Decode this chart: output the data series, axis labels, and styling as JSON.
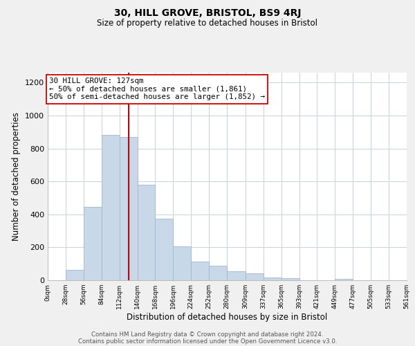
{
  "title": "30, HILL GROVE, BRISTOL, BS9 4RJ",
  "subtitle": "Size of property relative to detached houses in Bristol",
  "xlabel": "Distribution of detached houses by size in Bristol",
  "ylabel": "Number of detached properties",
  "bar_left_edges": [
    0,
    28,
    56,
    84,
    112,
    140,
    168,
    196,
    224,
    252,
    280,
    309,
    337,
    365,
    393,
    421,
    449,
    477,
    505,
    533
  ],
  "bar_widths": [
    28,
    28,
    28,
    28,
    28,
    28,
    28,
    28,
    28,
    28,
    29,
    28,
    28,
    28,
    28,
    28,
    28,
    28,
    28,
    28
  ],
  "bar_heights": [
    0,
    65,
    445,
    880,
    870,
    580,
    375,
    205,
    115,
    90,
    55,
    42,
    15,
    12,
    0,
    0,
    8,
    0,
    0,
    0
  ],
  "bar_color": "#c8d8e8",
  "bar_edge_color": "#a0b8cc",
  "property_line_x": 127,
  "property_line_color": "#cc0000",
  "annotation_text": "30 HILL GROVE: 127sqm\n← 50% of detached houses are smaller (1,861)\n50% of semi-detached houses are larger (1,852) →",
  "annotation_box_color": "#ffffff",
  "annotation_box_edge": "#cc0000",
  "xlim": [
    0,
    561
  ],
  "ylim": [
    0,
    1260
  ],
  "xtick_positions": [
    0,
    28,
    56,
    84,
    112,
    140,
    168,
    196,
    224,
    252,
    280,
    309,
    337,
    365,
    393,
    421,
    449,
    477,
    505,
    533,
    561
  ],
  "xtick_labels": [
    "0sqm",
    "28sqm",
    "56sqm",
    "84sqm",
    "112sqm",
    "140sqm",
    "168sqm",
    "196sqm",
    "224sqm",
    "252sqm",
    "280sqm",
    "309sqm",
    "337sqm",
    "365sqm",
    "393sqm",
    "421sqm",
    "449sqm",
    "477sqm",
    "505sqm",
    "533sqm",
    "561sqm"
  ],
  "ytick_positions": [
    0,
    200,
    400,
    600,
    800,
    1000,
    1200
  ],
  "ytick_labels": [
    "0",
    "200",
    "400",
    "600",
    "800",
    "1000",
    "1200"
  ],
  "footer_line1": "Contains HM Land Registry data © Crown copyright and database right 2024.",
  "footer_line2": "Contains public sector information licensed under the Open Government Licence v3.0.",
  "background_color": "#f0f0f0",
  "plot_background_color": "#ffffff",
  "grid_color": "#c8d0d8",
  "title_fontsize": 10,
  "subtitle_fontsize": 8.5,
  "xlabel_fontsize": 8.5,
  "ylabel_fontsize": 8.5,
  "annotation_fontsize": 7.8,
  "footer_fontsize": 6.2
}
